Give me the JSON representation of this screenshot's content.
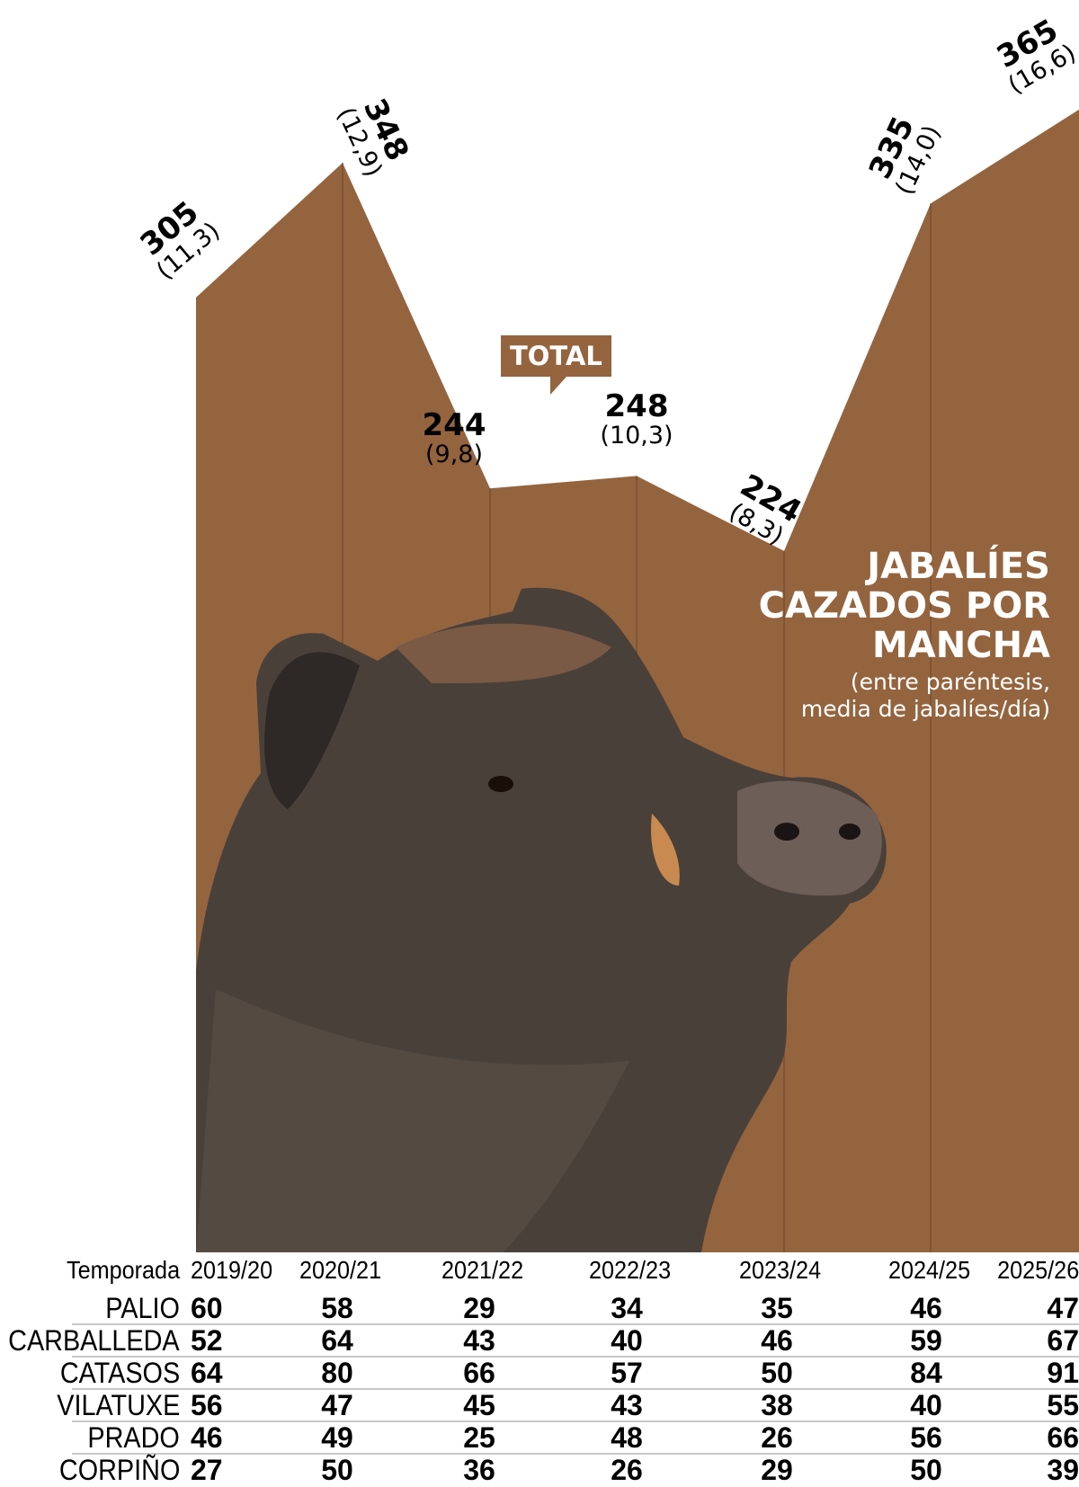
{
  "chart_data": {
    "type": "area",
    "title": "JABALÍES CAZADOS POR MANCHA",
    "subtitle": "(entre paréntesis, media de jabalíes/día)",
    "series_tag": "TOTAL",
    "categories": [
      "2019/20",
      "2020/21",
      "2021/22",
      "2022/23",
      "2023/24",
      "2024/25",
      "2025/26"
    ],
    "values": [
      305,
      348,
      244,
      248,
      224,
      335,
      365
    ],
    "daily_average": [
      "(11,3)",
      "(12,9)",
      "(9,8)",
      "(10,3)",
      "(8,3)",
      "(14,0)",
      "(16,6)"
    ],
    "ylim": [
      0,
      400
    ],
    "grid": false,
    "colors": {
      "area": "#94643f",
      "divider": "#7a4f30"
    }
  },
  "table": {
    "header_label": "Temporada",
    "columns": [
      "2019/20",
      "2020/21",
      "2021/22",
      "2022/23",
      "2023/24",
      "2024/25",
      "2025/26"
    ],
    "rows": [
      {
        "name": "PALIO",
        "values": [
          "60",
          "58",
          "29",
          "34",
          "35",
          "46",
          "47"
        ]
      },
      {
        "name": "CARBALLEDA",
        "values": [
          "52",
          "64",
          "43",
          "40",
          "46",
          "59",
          "67"
        ]
      },
      {
        "name": "CATASOS",
        "values": [
          "64",
          "80",
          "66",
          "57",
          "50",
          "84",
          "91"
        ]
      },
      {
        "name": "VILATUXE",
        "values": [
          "56",
          "47",
          "45",
          "43",
          "38",
          "40",
          "55"
        ]
      },
      {
        "name": "PRADO",
        "values": [
          "46",
          "49",
          "25",
          "48",
          "26",
          "56",
          "66"
        ]
      },
      {
        "name": "CORPIÑO",
        "values": [
          "27",
          "50",
          "36",
          "26",
          "29",
          "50",
          "39"
        ]
      }
    ]
  },
  "image": {
    "subject": "wild-boar-photo"
  }
}
